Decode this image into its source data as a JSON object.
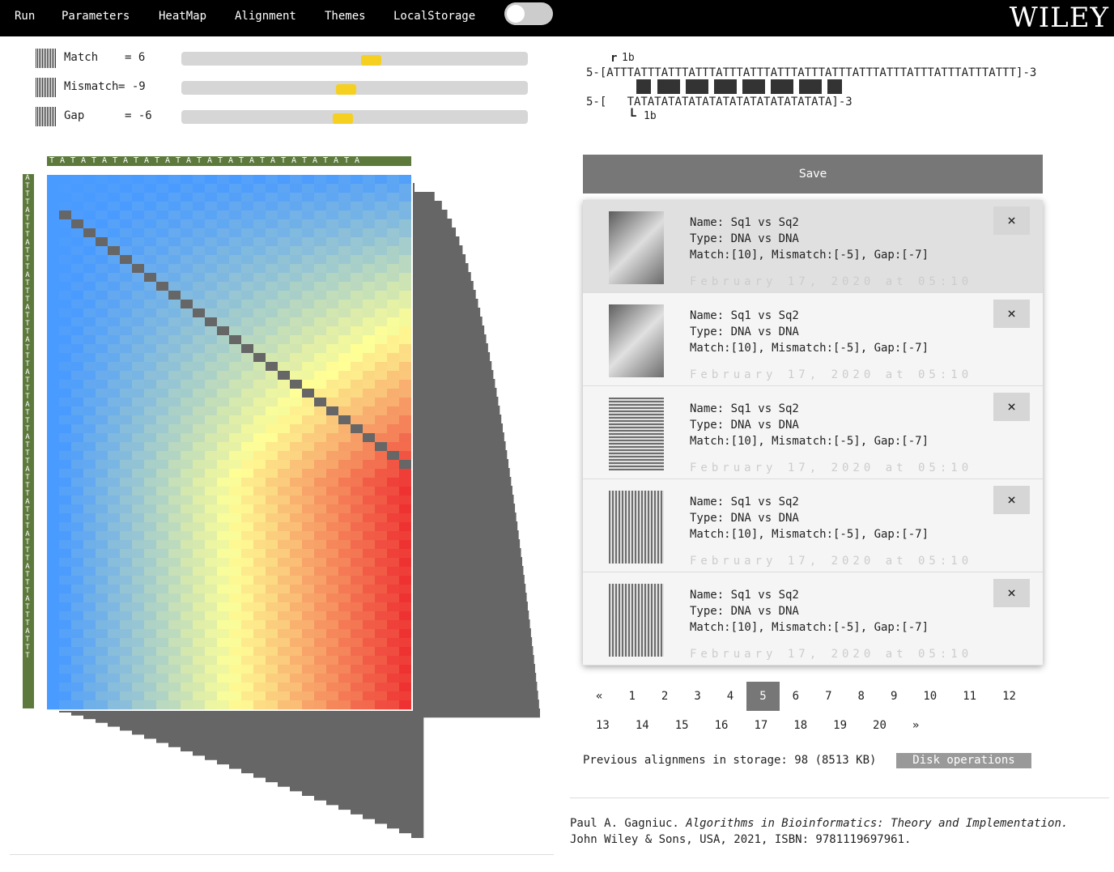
{
  "nav": {
    "items": [
      "Run",
      "Parameters",
      "HeatMap",
      "Alignment",
      "Themes",
      "LocalStorage"
    ],
    "logo": "WILEY"
  },
  "parameters": [
    {
      "label": "Match",
      "value": "= 6"
    },
    {
      "label": "Mismatch",
      "value": "= -9"
    },
    {
      "label": "Gap",
      "value": "= -6"
    }
  ],
  "alignment": {
    "top_marker": "1b",
    "seq1": "5-[ATTTATTTATTTATTTATTTATTTATTTATTTATTTATTTATTTATTTATTTATTTATTT]-3",
    "seq2": "5-[   TATATATATATATATATATATATATATATA]-3",
    "bottom_marker": "1b"
  },
  "heatmap": {
    "columns": "TATATATATATATATATATATATATATATA",
    "rows": "ATTTATTTATTTATTTATTTATTTATTTATTTATTTATTTATTTATTTATTTATTTATTT"
  },
  "save": "Save",
  "saved": [
    {
      "name": "Name: Sq1 vs Sq2",
      "type": "Type: DNA vs DNA",
      "params": "Match:[10], Mismatch:[-5], Gap:[-7]",
      "date": "February 17, 2020 at 05:10",
      "close": "×"
    },
    {
      "name": "Name: Sq1 vs Sq2",
      "type": "Type: DNA vs DNA",
      "params": "Match:[10], Mismatch:[-5], Gap:[-7]",
      "date": "February 17, 2020 at 05:10",
      "close": "×"
    },
    {
      "name": "Name: Sq1 vs Sq2",
      "type": "Type: DNA vs DNA",
      "params": "Match:[10], Mismatch:[-5], Gap:[-7]",
      "date": "February 17, 2020 at 05:10",
      "close": "×"
    },
    {
      "name": "Name: Sq1 vs Sq2",
      "type": "Type: DNA vs DNA",
      "params": "Match:[10], Mismatch:[-5], Gap:[-7]",
      "date": "February 17, 2020 at 05:10",
      "close": "×"
    },
    {
      "name": "Name: Sq1 vs Sq2",
      "type": "Type: DNA vs DNA",
      "params": "Match:[10], Mismatch:[-5], Gap:[-7]",
      "date": "February 17, 2020 at 05:10",
      "close": "×"
    }
  ],
  "pagination": {
    "pages": [
      "«",
      "1",
      "2",
      "3",
      "4",
      "5",
      "6",
      "7",
      "8",
      "9",
      "10",
      "11",
      "12",
      "13",
      "14",
      "15",
      "16",
      "17",
      "18",
      "19",
      "20",
      "»"
    ],
    "selected": 5
  },
  "storage": {
    "text": "Previous alignmens in storage: 98 (8513 KB)",
    "button": "Disk operations"
  },
  "citation": {
    "author": "Paul A. Gagniuc. ",
    "title": "Algorithms in Bioinformatics: Theory and Implementation.",
    "publisher": "John Wiley & Sons, USA, 2021, ISBN: 9781119697961."
  }
}
